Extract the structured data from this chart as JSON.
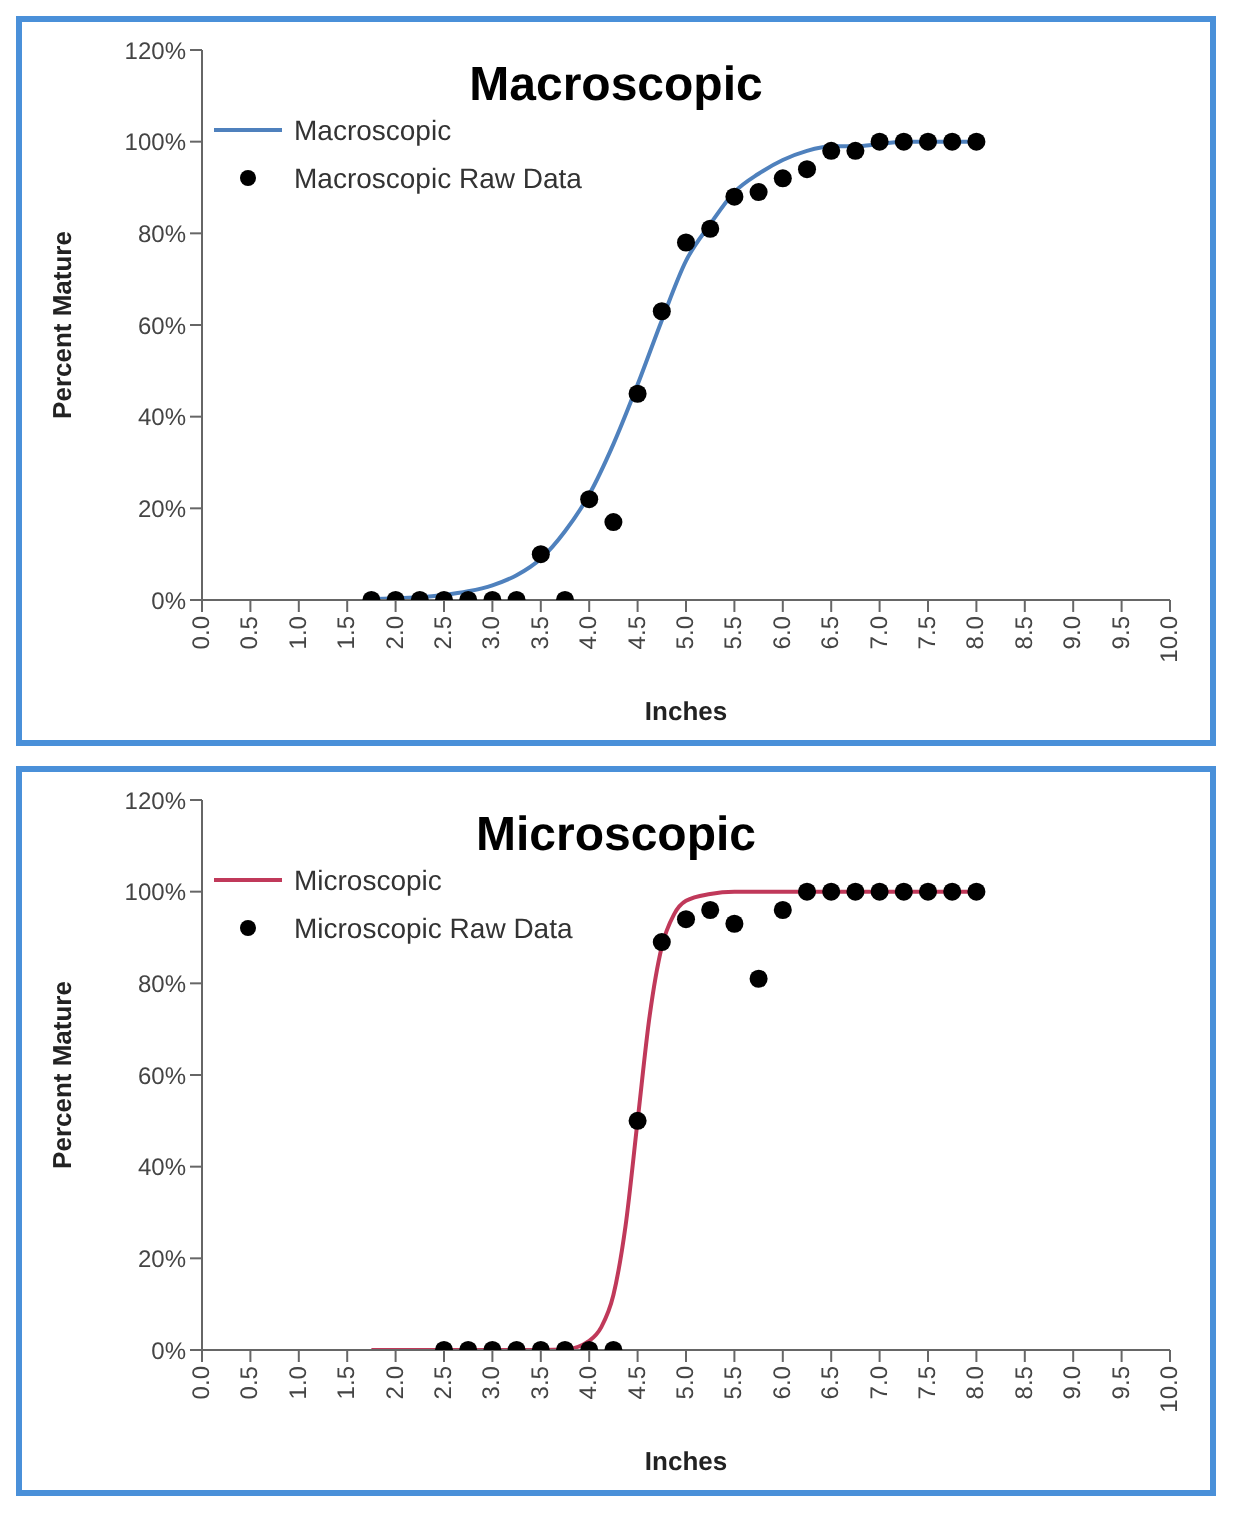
{
  "chart_data": [
    {
      "type": "line",
      "title": "Macroscopic",
      "xlabel": "Inches",
      "ylabel": "Percent Mature",
      "legend": "top left",
      "grid": false,
      "xlim": [
        0,
        10
      ],
      "xticks": [
        {
          "value": 0,
          "label": "0.0"
        },
        {
          "value": 0.5,
          "label": "0.5"
        },
        {
          "value": 1,
          "label": "1.0"
        },
        {
          "value": 1.5,
          "label": "1.5"
        },
        {
          "value": 2,
          "label": "2.0"
        },
        {
          "value": 2.5,
          "label": "2.5"
        },
        {
          "value": 3,
          "label": "3.0"
        },
        {
          "value": 3.5,
          "label": "3.5"
        },
        {
          "value": 4,
          "label": "4.0"
        },
        {
          "value": 4.5,
          "label": "4.5"
        },
        {
          "value": 5,
          "label": "5.0"
        },
        {
          "value": 5.5,
          "label": "5.5"
        },
        {
          "value": 6,
          "label": "6.0"
        },
        {
          "value": 6.5,
          "label": "6.5"
        },
        {
          "value": 7,
          "label": "7.0"
        },
        {
          "value": 7.5,
          "label": "7.5"
        },
        {
          "value": 8,
          "label": "8.0"
        },
        {
          "value": 8.5,
          "label": "8.5"
        },
        {
          "value": 9,
          "label": "9.0"
        },
        {
          "value": 9.5,
          "label": "9.5"
        },
        {
          "value": 10,
          "label": "10.0"
        }
      ],
      "ylim": [
        0,
        120
      ],
      "yticks": [
        {
          "value": 0,
          "label": "0%"
        },
        {
          "value": 20,
          "label": "20%"
        },
        {
          "value": 40,
          "label": "40%"
        },
        {
          "value": 60,
          "label": "60%"
        },
        {
          "value": 80,
          "label": "80%"
        },
        {
          "value": 100,
          "label": "100%"
        },
        {
          "value": 120,
          "label": "120%"
        }
      ],
      "series": [
        {
          "name": "Macroscopic",
          "color": "#4f81bd",
          "marker": "none",
          "x": [
            1.75,
            2,
            2.25,
            2.5,
            2.75,
            3,
            3.25,
            3.5,
            3.75,
            4,
            4.25,
            4.5,
            4.75,
            5,
            5.25,
            5.5,
            5.75,
            6,
            6.25,
            6.5,
            6.75,
            7,
            7.25,
            7.5,
            7.75,
            8
          ],
          "values": [
            0.2,
            0.4,
            0.6,
            1.1,
            1.9,
            3.2,
            5.4,
            9,
            15,
            23,
            34,
            47,
            61,
            74,
            82,
            89,
            93,
            96,
            98,
            99,
            99,
            99.5,
            100,
            100,
            100,
            100
          ]
        },
        {
          "name": "Macroscopic Raw Data",
          "type": "scatter",
          "color": "#000000",
          "marker": "circle",
          "x": [
            1.75,
            2,
            2.25,
            2.5,
            2.75,
            3,
            3.25,
            3.5,
            3.75,
            4,
            4.25,
            4.5,
            4.75,
            5,
            5.25,
            5.5,
            5.75,
            6,
            6.25,
            6.5,
            6.75,
            7,
            7.25,
            7.5,
            7.75,
            8
          ],
          "values": [
            0,
            0,
            0,
            0,
            0,
            0,
            0,
            10,
            0,
            22,
            17,
            45,
            63,
            78,
            81,
            88,
            89,
            92,
            94,
            98,
            98,
            100,
            100,
            100,
            100,
            100
          ]
        }
      ]
    },
    {
      "type": "line",
      "title": "Microscopic",
      "xlabel": "Inches",
      "ylabel": "Percent Mature",
      "legend": "top left",
      "grid": false,
      "xlim": [
        0,
        10
      ],
      "xticks": [
        {
          "value": 0,
          "label": "0.0"
        },
        {
          "value": 0.5,
          "label": "0.5"
        },
        {
          "value": 1,
          "label": "1.0"
        },
        {
          "value": 1.5,
          "label": "1.5"
        },
        {
          "value": 2,
          "label": "2.0"
        },
        {
          "value": 2.5,
          "label": "2.5"
        },
        {
          "value": 3,
          "label": "3.0"
        },
        {
          "value": 3.5,
          "label": "3.5"
        },
        {
          "value": 4,
          "label": "4.0"
        },
        {
          "value": 4.5,
          "label": "4.5"
        },
        {
          "value": 5,
          "label": "5.0"
        },
        {
          "value": 5.5,
          "label": "5.5"
        },
        {
          "value": 6,
          "label": "6.0"
        },
        {
          "value": 6.5,
          "label": "6.5"
        },
        {
          "value": 7,
          "label": "7.0"
        },
        {
          "value": 7.5,
          "label": "7.5"
        },
        {
          "value": 8,
          "label": "8.0"
        },
        {
          "value": 8.5,
          "label": "8.5"
        },
        {
          "value": 9,
          "label": "9.0"
        },
        {
          "value": 9.5,
          "label": "9.5"
        },
        {
          "value": 10,
          "label": "10.0"
        }
      ],
      "ylim": [
        0,
        120
      ],
      "yticks": [
        {
          "value": 0,
          "label": "0%"
        },
        {
          "value": 20,
          "label": "20%"
        },
        {
          "value": 40,
          "label": "40%"
        },
        {
          "value": 60,
          "label": "60%"
        },
        {
          "value": 80,
          "label": "80%"
        },
        {
          "value": 100,
          "label": "100%"
        },
        {
          "value": 120,
          "label": "120%"
        }
      ],
      "series": [
        {
          "name": "Microscopic",
          "color": "#c0395a",
          "marker": "none",
          "x": [
            1.75,
            2,
            2.5,
            3,
            3.5,
            3.75,
            4,
            4.125,
            4.25,
            4.375,
            4.5,
            4.625,
            4.75,
            4.875,
            5,
            5.25,
            5.5,
            6,
            6.5,
            7,
            7.5,
            8
          ],
          "values": [
            0,
            0,
            0,
            0,
            0,
            0.1,
            2,
            5,
            12,
            27,
            50,
            73,
            88,
            95,
            98,
            99.5,
            100,
            100,
            100,
            100,
            100,
            100
          ]
        },
        {
          "name": "Microscopic Raw Data",
          "type": "scatter",
          "color": "#000000",
          "marker": "circle",
          "x": [
            2.5,
            2.75,
            3,
            3.25,
            3.5,
            3.75,
            4,
            4.25,
            4.5,
            4.75,
            5,
            5.25,
            5.5,
            5.75,
            6,
            6.25,
            6.5,
            6.75,
            7,
            7.25,
            7.5,
            7.75,
            8
          ],
          "values": [
            0,
            0,
            0,
            0,
            0,
            0,
            0,
            0,
            50,
            89,
            94,
            96,
            93,
            81,
            96,
            100,
            100,
            100,
            100,
            100,
            100,
            100,
            100
          ]
        }
      ]
    }
  ]
}
